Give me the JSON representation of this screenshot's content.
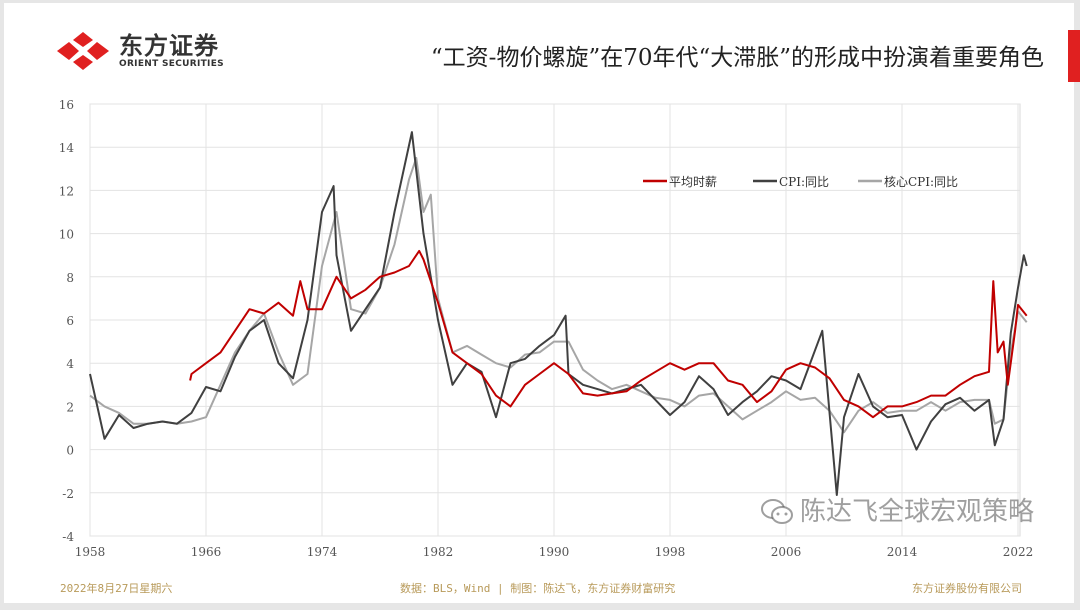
{
  "header": {
    "logo_cn": "东方证券",
    "logo_en": "ORIENT SECURITIES",
    "title": "“工资-物价螺旋”在70年代“大滞胀”的形成中扮演着重要角色",
    "accent": "#e02020"
  },
  "footer": {
    "date": "2022年8月27日星期六",
    "source": "数据：BLS，Wind | 制图：陈达飞，东方证券财富研究",
    "company": "东方证券股份有限公司"
  },
  "watermark": {
    "icon": "wechat-icon",
    "text": "陈达飞全球宏观策略"
  },
  "chart_data": {
    "type": "line",
    "title": "",
    "xlabel": "",
    "ylabel": "",
    "xlim": [
      1958,
      2022.7
    ],
    "ylim": [
      -4,
      16
    ],
    "xticks": [
      "1958",
      "1966",
      "1974",
      "1982",
      "1990",
      "1998",
      "2006",
      "2014",
      "2022"
    ],
    "yticks": [
      "16",
      "14",
      "12",
      "10",
      "8",
      "6",
      "4",
      "2",
      "0",
      "-2",
      "-4"
    ],
    "grid": true,
    "legend": "top-right",
    "series": [
      {
        "name": "平均时薪",
        "color": "#c00000",
        "points": [
          [
            1964.9,
            3.2
          ],
          [
            1965,
            3.5
          ],
          [
            1966,
            4
          ],
          [
            1967,
            4.5
          ],
          [
            1968,
            5.5
          ],
          [
            1969,
            6.5
          ],
          [
            1970,
            6.3
          ],
          [
            1971,
            6.8
          ],
          [
            1972,
            6.2
          ],
          [
            1972.5,
            7.8
          ],
          [
            1973,
            6.5
          ],
          [
            1974,
            6.5
          ],
          [
            1975,
            8
          ],
          [
            1976,
            7
          ],
          [
            1977,
            7.4
          ],
          [
            1978,
            8
          ],
          [
            1979,
            8.2
          ],
          [
            1980,
            8.5
          ],
          [
            1980.7,
            9.2
          ],
          [
            1981,
            8.8
          ],
          [
            1982,
            6.8
          ],
          [
            1983,
            4.5
          ],
          [
            1984,
            4
          ],
          [
            1985,
            3.5
          ],
          [
            1986,
            2.5
          ],
          [
            1987,
            2
          ],
          [
            1988,
            3
          ],
          [
            1989,
            3.5
          ],
          [
            1990,
            4
          ],
          [
            1991,
            3.5
          ],
          [
            1992,
            2.6
          ],
          [
            1993,
            2.5
          ],
          [
            1994,
            2.6
          ],
          [
            1995,
            2.7
          ],
          [
            1996,
            3.2
          ],
          [
            1997,
            3.6
          ],
          [
            1998,
            4
          ],
          [
            1999,
            3.7
          ],
          [
            2000,
            4
          ],
          [
            2001,
            4
          ],
          [
            2002,
            3.2
          ],
          [
            2003,
            3
          ],
          [
            2004,
            2.2
          ],
          [
            2005,
            2.7
          ],
          [
            2006,
            3.7
          ],
          [
            2007,
            4
          ],
          [
            2008,
            3.8
          ],
          [
            2009,
            3.3
          ],
          [
            2010,
            2.3
          ],
          [
            2011,
            2
          ],
          [
            2012,
            1.5
          ],
          [
            2013,
            2
          ],
          [
            2014,
            2
          ],
          [
            2015,
            2.2
          ],
          [
            2016,
            2.5
          ],
          [
            2017,
            2.5
          ],
          [
            2018,
            3
          ],
          [
            2019,
            3.4
          ],
          [
            2020,
            3.6
          ],
          [
            2020.3,
            7.8
          ],
          [
            2020.6,
            4.5
          ],
          [
            2021,
            5
          ],
          [
            2021.3,
            3
          ],
          [
            2021.8,
            5.5
          ],
          [
            2022,
            6.7
          ],
          [
            2022.6,
            6.2
          ]
        ]
      },
      {
        "name": "CPI:同比",
        "color": "#404040",
        "points": [
          [
            1958,
            3.5
          ],
          [
            1958.5,
            2
          ],
          [
            1959,
            0.5
          ],
          [
            1960,
            1.6
          ],
          [
            1961,
            1
          ],
          [
            1962,
            1.2
          ],
          [
            1963,
            1.3
          ],
          [
            1964,
            1.2
          ],
          [
            1965,
            1.7
          ],
          [
            1966,
            2.9
          ],
          [
            1967,
            2.7
          ],
          [
            1968,
            4.3
          ],
          [
            1969,
            5.5
          ],
          [
            1970,
            6
          ],
          [
            1971,
            4
          ],
          [
            1972,
            3.3
          ],
          [
            1973,
            6
          ],
          [
            1974,
            11
          ],
          [
            1974.8,
            12.2
          ],
          [
            1975,
            9
          ],
          [
            1976,
            5.5
          ],
          [
            1977,
            6.5
          ],
          [
            1978,
            7.5
          ],
          [
            1979,
            11
          ],
          [
            1980.2,
            14.7
          ],
          [
            1981,
            10
          ],
          [
            1982,
            6
          ],
          [
            1983,
            3
          ],
          [
            1984,
            4
          ],
          [
            1985,
            3.6
          ],
          [
            1986,
            1.5
          ],
          [
            1987,
            4
          ],
          [
            1988,
            4.2
          ],
          [
            1989,
            4.8
          ],
          [
            1990,
            5.3
          ],
          [
            1990.8,
            6.2
          ],
          [
            1991,
            3.5
          ],
          [
            1992,
            3
          ],
          [
            1993,
            2.8
          ],
          [
            1994,
            2.6
          ],
          [
            1995,
            2.8
          ],
          [
            1996,
            3
          ],
          [
            1997,
            2.3
          ],
          [
            1998,
            1.6
          ],
          [
            1999,
            2.2
          ],
          [
            2000,
            3.4
          ],
          [
            2001,
            2.8
          ],
          [
            2002,
            1.6
          ],
          [
            2003,
            2.2
          ],
          [
            2004,
            2.7
          ],
          [
            2005,
            3.4
          ],
          [
            2006,
            3.2
          ],
          [
            2007,
            2.8
          ],
          [
            2008.5,
            5.5
          ],
          [
            2009.5,
            -2.1
          ],
          [
            2010,
            1.5
          ],
          [
            2011,
            3.5
          ],
          [
            2012,
            2
          ],
          [
            2013,
            1.5
          ],
          [
            2014,
            1.6
          ],
          [
            2015,
            0
          ],
          [
            2016,
            1.3
          ],
          [
            2017,
            2.1
          ],
          [
            2018,
            2.4
          ],
          [
            2019,
            1.8
          ],
          [
            2020,
            2.3
          ],
          [
            2020.4,
            0.2
          ],
          [
            2021,
            1.4
          ],
          [
            2021.5,
            5.4
          ],
          [
            2022,
            7.5
          ],
          [
            2022.4,
            9
          ],
          [
            2022.6,
            8.5
          ]
        ]
      },
      {
        "name": "核心CPI:同比",
        "color": "#a6a6a6",
        "points": [
          [
            1958,
            2.5
          ],
          [
            1959,
            2
          ],
          [
            1960,
            1.7
          ],
          [
            1961,
            1.2
          ],
          [
            1962,
            1.2
          ],
          [
            1963,
            1.3
          ],
          [
            1964,
            1.2
          ],
          [
            1965,
            1.3
          ],
          [
            1966,
            1.5
          ],
          [
            1967,
            3
          ],
          [
            1968,
            4.5
          ],
          [
            1969,
            5.5
          ],
          [
            1970,
            6.3
          ],
          [
            1971,
            4.5
          ],
          [
            1972,
            3
          ],
          [
            1973,
            3.5
          ],
          [
            1974,
            8.5
          ],
          [
            1975,
            11
          ],
          [
            1976,
            6.5
          ],
          [
            1977,
            6.3
          ],
          [
            1978,
            7.5
          ],
          [
            1979,
            9.5
          ],
          [
            1980,
            12.5
          ],
          [
            1980.5,
            13.5
          ],
          [
            1981,
            11
          ],
          [
            1981.5,
            11.8
          ],
          [
            1982,
            7
          ],
          [
            1983,
            4.5
          ],
          [
            1984,
            4.8
          ],
          [
            1985,
            4.4
          ],
          [
            1986,
            4
          ],
          [
            1987,
            3.8
          ],
          [
            1988,
            4.4
          ],
          [
            1989,
            4.5
          ],
          [
            1990,
            5
          ],
          [
            1991,
            5
          ],
          [
            1992,
            3.7
          ],
          [
            1993,
            3.2
          ],
          [
            1994,
            2.8
          ],
          [
            1995,
            3
          ],
          [
            1996,
            2.7
          ],
          [
            1997,
            2.4
          ],
          [
            1998,
            2.3
          ],
          [
            1999,
            2
          ],
          [
            2000,
            2.5
          ],
          [
            2001,
            2.6
          ],
          [
            2002,
            2
          ],
          [
            2003,
            1.4
          ],
          [
            2004,
            1.8
          ],
          [
            2005,
            2.2
          ],
          [
            2006,
            2.7
          ],
          [
            2007,
            2.3
          ],
          [
            2008,
            2.4
          ],
          [
            2009,
            1.8
          ],
          [
            2010,
            0.8
          ],
          [
            2011,
            1.8
          ],
          [
            2012,
            2.2
          ],
          [
            2013,
            1.7
          ],
          [
            2014,
            1.8
          ],
          [
            2015,
            1.8
          ],
          [
            2016,
            2.2
          ],
          [
            2017,
            1.8
          ],
          [
            2018,
            2.2
          ],
          [
            2019,
            2.3
          ],
          [
            2020,
            2.3
          ],
          [
            2020.4,
            1.2
          ],
          [
            2021,
            1.4
          ],
          [
            2021.5,
            4.5
          ],
          [
            2022,
            6.4
          ],
          [
            2022.6,
            5.9
          ]
        ]
      }
    ]
  }
}
